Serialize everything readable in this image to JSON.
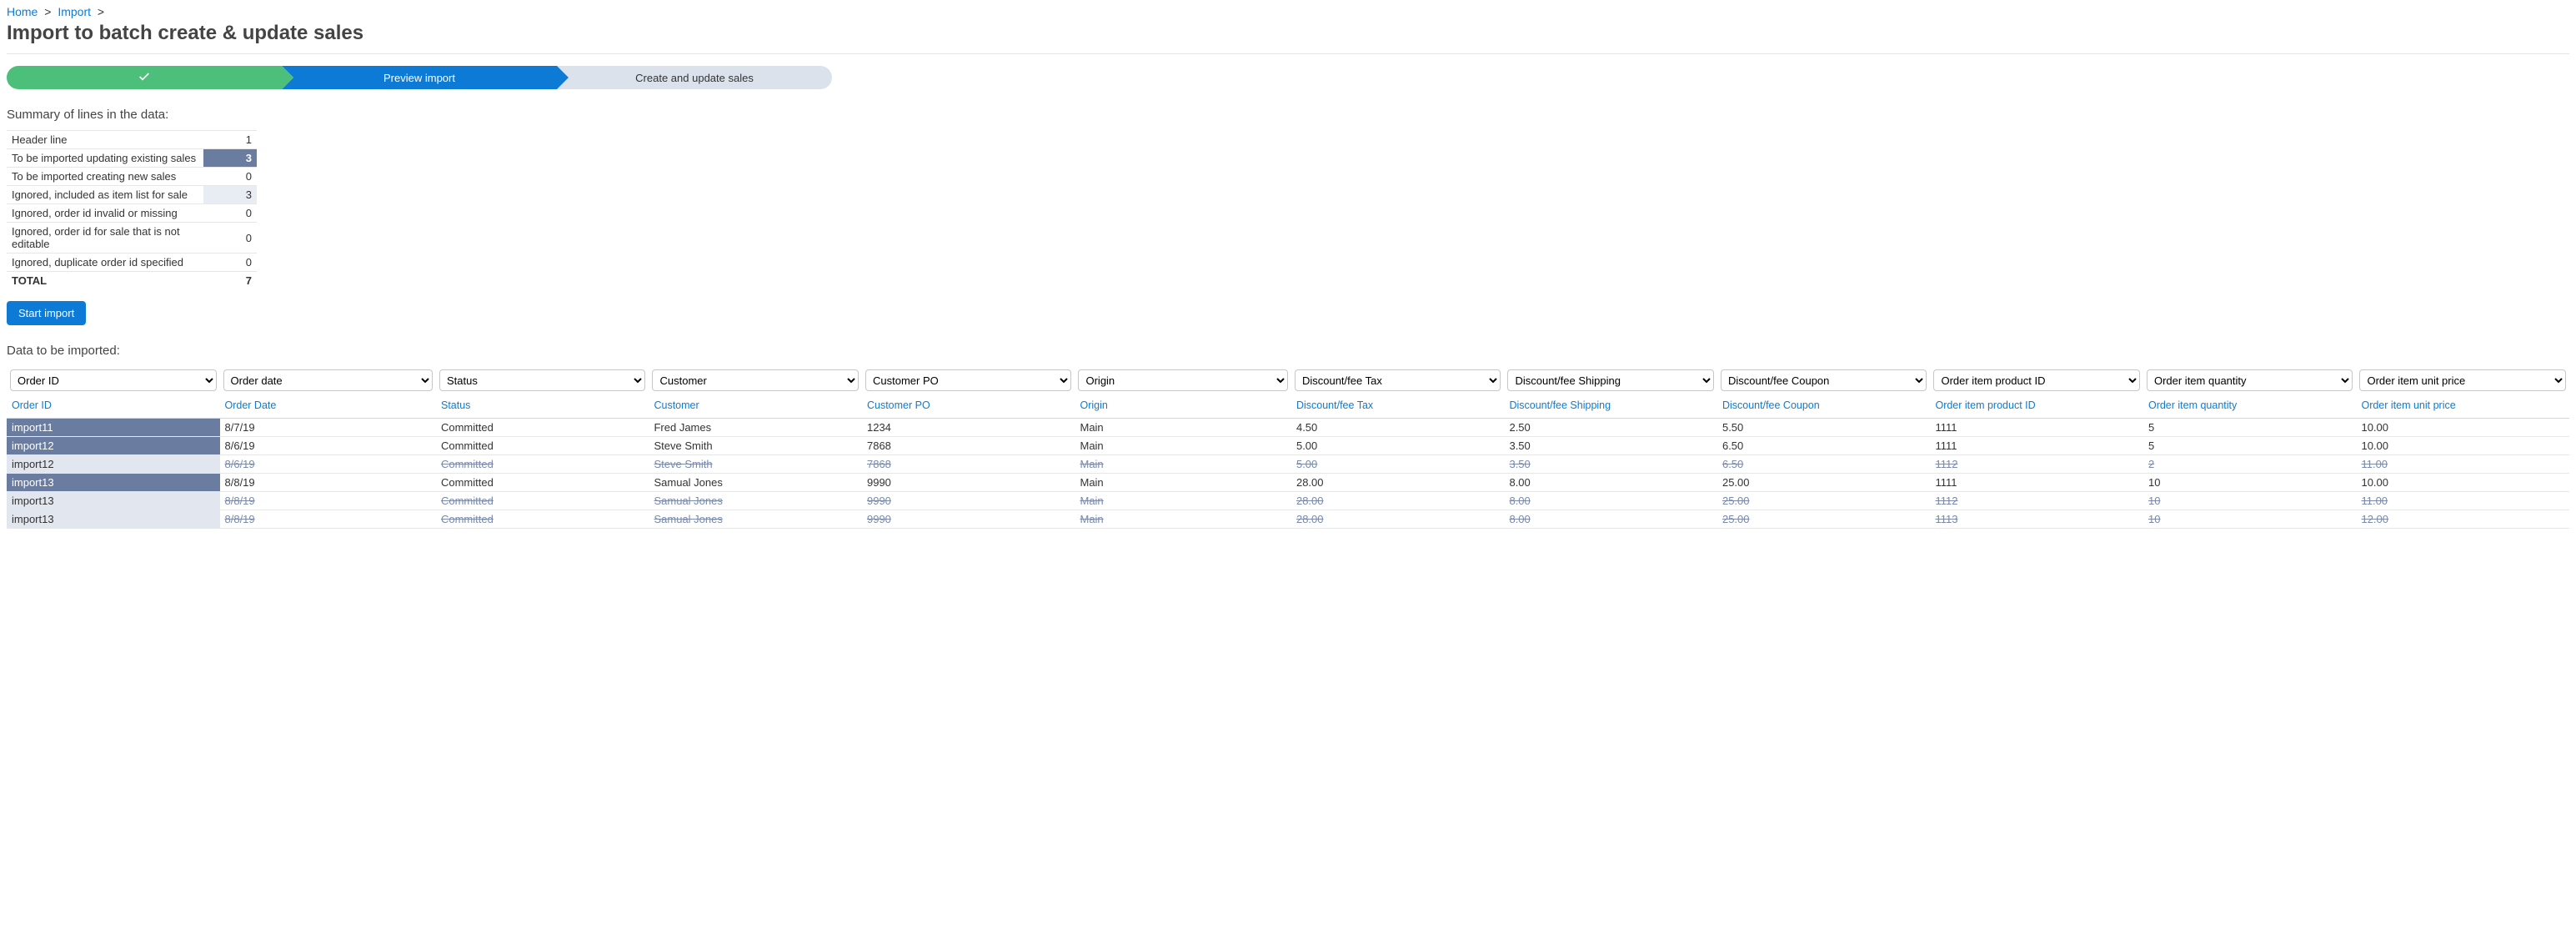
{
  "breadcrumb": {
    "home": "Home",
    "import": "Import"
  },
  "page_title": "Import to batch create & update sales",
  "stepper": {
    "step2": "Preview import",
    "step3": "Create and update sales",
    "colors": {
      "done": "#4cc07a",
      "active": "#0d7bd6",
      "pending": "#dbe2ec"
    }
  },
  "summary": {
    "heading": "Summary of lines in the data:",
    "rows": [
      {
        "label": "Header line",
        "value": "1",
        "style": "plain"
      },
      {
        "label": "To be imported updating existing sales",
        "value": "3",
        "style": "highlighted"
      },
      {
        "label": "To be imported creating new sales",
        "value": "0",
        "style": "plain"
      },
      {
        "label": "Ignored, included as item list for sale",
        "value": "3",
        "style": "lite"
      },
      {
        "label": "Ignored, order id invalid or missing",
        "value": "0",
        "style": "plain"
      },
      {
        "label": "Ignored, order id for sale that is not editable",
        "value": "0",
        "style": "plain"
      },
      {
        "label": "Ignored, duplicate order id specified",
        "value": "0",
        "style": "plain"
      }
    ],
    "total_label": "TOTAL",
    "total_value": "7"
  },
  "buttons": {
    "start_import": "Start import"
  },
  "data_section": {
    "heading": "Data to be imported:",
    "selects": [
      "Order ID",
      "Order date",
      "Status",
      "Customer",
      "Customer PO",
      "Origin",
      "Discount/fee Tax",
      "Discount/fee Shipping",
      "Discount/fee Coupon",
      "Order item product ID",
      "Order item quantity",
      "Order item unit price"
    ],
    "headers": [
      "Order ID",
      "Order Date",
      "Status",
      "Customer",
      "Customer PO",
      "Origin",
      "Discount/fee Tax",
      "Discount/fee Shipping",
      "Discount/fee Coupon",
      "Order item product ID",
      "Order item quantity",
      "Order item unit price"
    ],
    "rows": [
      {
        "id_style": "blue",
        "struck": false,
        "cells": [
          "import11",
          "8/7/19",
          "Committed",
          "Fred James",
          "1234",
          "Main",
          "4.50",
          "2.50",
          "5.50",
          "1111",
          "5",
          "10.00"
        ]
      },
      {
        "id_style": "blue",
        "struck": false,
        "cells": [
          "import12",
          "8/6/19",
          "Committed",
          "Steve Smith",
          "7868",
          "Main",
          "5.00",
          "3.50",
          "6.50",
          "1111",
          "5",
          "10.00"
        ]
      },
      {
        "id_style": "lite",
        "struck": true,
        "cells": [
          "import12",
          "8/6/19",
          "Committed",
          "Steve Smith",
          "7868",
          "Main",
          "5.00",
          "3.50",
          "6.50",
          "1112",
          "2",
          "11.00"
        ]
      },
      {
        "id_style": "blue",
        "struck": false,
        "cells": [
          "import13",
          "8/8/19",
          "Committed",
          "Samual Jones",
          "9990",
          "Main",
          "28.00",
          "8.00",
          "25.00",
          "1111",
          "10",
          "10.00"
        ]
      },
      {
        "id_style": "lite",
        "struck": true,
        "cells": [
          "import13",
          "8/8/19",
          "Committed",
          "Samual Jones",
          "9990",
          "Main",
          "28.00",
          "8.00",
          "25.00",
          "1112",
          "10",
          "11.00"
        ]
      },
      {
        "id_style": "lite",
        "struck": true,
        "cells": [
          "import13",
          "8/8/19",
          "Committed",
          "Samual Jones",
          "9990",
          "Main",
          "28.00",
          "8.00",
          "25.00",
          "1113",
          "10",
          "12.00"
        ]
      }
    ]
  }
}
